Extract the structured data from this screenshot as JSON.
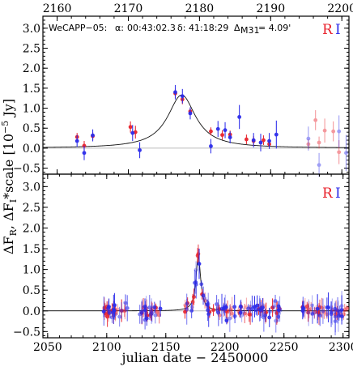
{
  "chart_data": {
    "type": "scatter",
    "ylabel": "ΔF_R, ΔF_I*scale [10^-5 Jy]",
    "ylabel_parts": {
      "a": "ΔF",
      "a_sub": "R",
      "b": ", ΔF",
      "b_sub": "I",
      "c": "*scale [10",
      "c_sup": "−5",
      "d": " Jy]"
    },
    "xlabel": "julian date − 2450000",
    "top_panel": {
      "xlim": [
        2158,
        2201
      ],
      "x_ticks": [
        2160,
        2170,
        2180,
        2190,
        2200
      ],
      "ylim": [
        -0.65,
        3.3
      ],
      "y_ticks": [
        -0.5,
        0.0,
        0.5,
        1.0,
        1.5,
        2.0,
        2.5,
        3.0
      ],
      "annotation": {
        "name": "WeCAPP−05:",
        "alpha_symbol": "α:",
        "alpha": "00:43:02.3",
        "delta_symbol": "δ:",
        "delta": "41:18:29",
        "dist_symbol": "Δ",
        "dist_sub": "M31",
        "dist": "= 4.09'"
      },
      "legend": {
        "R": "R",
        "I": "I"
      },
      "model": {
        "t0": 2177.5,
        "amp": 1.33,
        "width": 2.4
      },
      "series": [
        {
          "name": "R",
          "color": "#e8202a",
          "points": [
            [
              2162.8,
              0.28,
              0.1
            ],
            [
              2163.8,
              0.06,
              0.12
            ],
            [
              2165,
              0.3,
              0.1
            ],
            [
              2170.3,
              0.53,
              0.14
            ],
            [
              2171,
              0.4,
              0.16
            ],
            [
              2176.6,
              1.37,
              0.12
            ],
            [
              2177.6,
              1.22,
              0.12
            ],
            [
              2178.7,
              0.92,
              0.1
            ],
            [
              2181.6,
              0.42,
              0.1
            ],
            [
              2183.2,
              0.33,
              0.12
            ],
            [
              2184.3,
              0.34,
              0.1
            ],
            [
              2186.6,
              0.22,
              0.12
            ],
            [
              2187.6,
              0.18,
              0.12
            ],
            [
              2189,
              0.2,
              0.12
            ],
            [
              2189.8,
              0.1,
              0.1
            ],
            [
              2195.3,
              0.1,
              0.12
            ],
            [
              2196.3,
              0.7,
              0.25
            ],
            [
              2196.8,
              0.14,
              0.15
            ],
            [
              2197.6,
              0.44,
              0.3
            ],
            [
              2198.8,
              0.42,
              0.25
            ],
            [
              2199.6,
              -0.1,
              0.3
            ]
          ]
        },
        {
          "name": "I",
          "color": "#2a2aea",
          "points": [
            [
              2162.8,
              0.18,
              0.15
            ],
            [
              2163.8,
              -0.12,
              0.18
            ],
            [
              2165,
              0.32,
              0.15
            ],
            [
              2170.6,
              0.38,
              0.2
            ],
            [
              2171.6,
              -0.05,
              0.2
            ],
            [
              2176.6,
              1.4,
              0.18
            ],
            [
              2177.6,
              1.3,
              0.18
            ],
            [
              2178.7,
              0.87,
              0.15
            ],
            [
              2181.6,
              0.05,
              0.18
            ],
            [
              2182.6,
              0.48,
              0.2
            ],
            [
              2183.6,
              0.45,
              0.2
            ],
            [
              2184.3,
              0.27,
              0.15
            ],
            [
              2185.6,
              0.78,
              0.3
            ],
            [
              2187.6,
              0.2,
              0.18
            ],
            [
              2188.6,
              0.14,
              0.22
            ],
            [
              2189.8,
              0.18,
              0.2
            ],
            [
              2190.8,
              0.34,
              0.35
            ],
            [
              2195.3,
              0.24,
              0.3
            ],
            [
              2196.8,
              -0.42,
              0.3
            ],
            [
              2199.6,
              0.42,
              0.4
            ],
            [
              2200.6,
              -0.12,
              0.45
            ]
          ]
        }
      ]
    },
    "bottom_panel": {
      "xlim": [
        2046,
        2305
      ],
      "x_ticks": [
        2050,
        2100,
        2150,
        2200,
        2250,
        2300
      ],
      "ylim": [
        -0.65,
        3.3
      ],
      "y_ticks": [
        -0.5,
        0.0,
        0.5,
        1.0,
        1.5,
        2.0,
        2.5,
        3.0
      ],
      "legend": {
        "R": "R",
        "I": "I"
      },
      "model": {
        "t0": 2177.5,
        "amp": 1.33,
        "width": 2.4
      },
      "clusters": [
        {
          "range": [
            2097,
            2118
          ],
          "n_r": 20,
          "n_i": 18
        },
        {
          "range": [
            2128,
            2146
          ],
          "n_r": 12,
          "n_i": 16
        },
        {
          "range": [
            2166,
            2248
          ],
          "n_r": 42,
          "n_i": 55
        },
        {
          "range": [
            2265,
            2304
          ],
          "n_r": 26,
          "n_i": 28
        }
      ],
      "series": [
        {
          "name": "R",
          "color": "#e8202a"
        },
        {
          "name": "I",
          "color": "#2a2aea"
        }
      ]
    }
  }
}
